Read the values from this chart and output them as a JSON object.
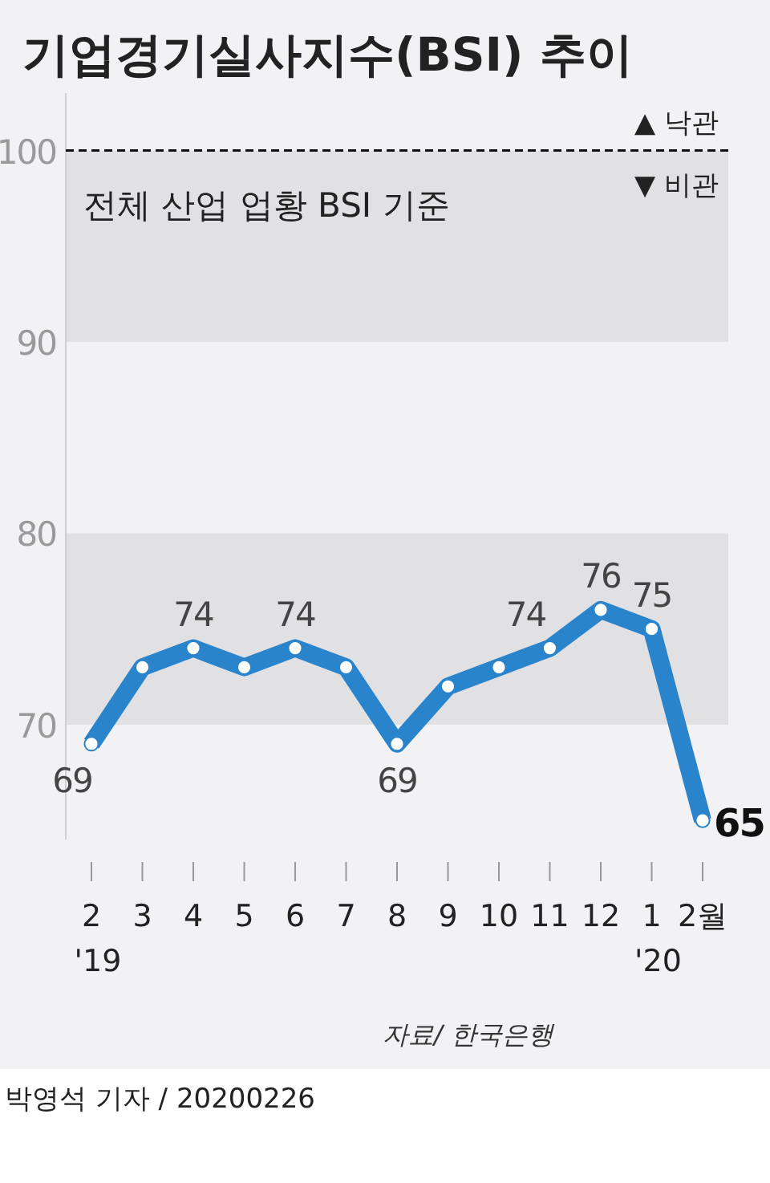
{
  "chart_data": {
    "type": "line",
    "title": "기업경기실사지수(BSI) 추이",
    "subtitle": "전체 산업 업황 BSI 기준",
    "categories": [
      "2\n'19",
      "3",
      "4",
      "5",
      "6",
      "7",
      "8",
      "9",
      "10",
      "11",
      "12",
      "1\n'20",
      "2월"
    ],
    "series": [
      {
        "color": "#2a84cc",
        "values": [
          69,
          73,
          74,
          73,
          74,
          73,
          69,
          72,
          73,
          74,
          76,
          75,
          65
        ],
        "value_labels": [
          "69",
          null,
          "74",
          null,
          "74",
          null,
          "69",
          null,
          null,
          "74",
          "76",
          "75",
          "65"
        ]
      }
    ],
    "ylim": [
      64,
      103
    ],
    "yticks": [
      70,
      80,
      90,
      100
    ],
    "marker": "circle",
    "bands": [
      {
        "axis": "y",
        "from": 90,
        "to": 100,
        "color": "#e1e1e4"
      },
      {
        "axis": "y",
        "from": 70,
        "to": 80,
        "color": "#e1e1e4"
      }
    ],
    "ref_lines": [
      {
        "axis": "y",
        "value": 100,
        "label": "▲ 낙관\n▼ 비관",
        "line_style": "dashed",
        "color": "#111111"
      }
    ],
    "annotations": [
      "자료/ 한국은행",
      "박영석 기자 / 20200226"
    ]
  }
}
